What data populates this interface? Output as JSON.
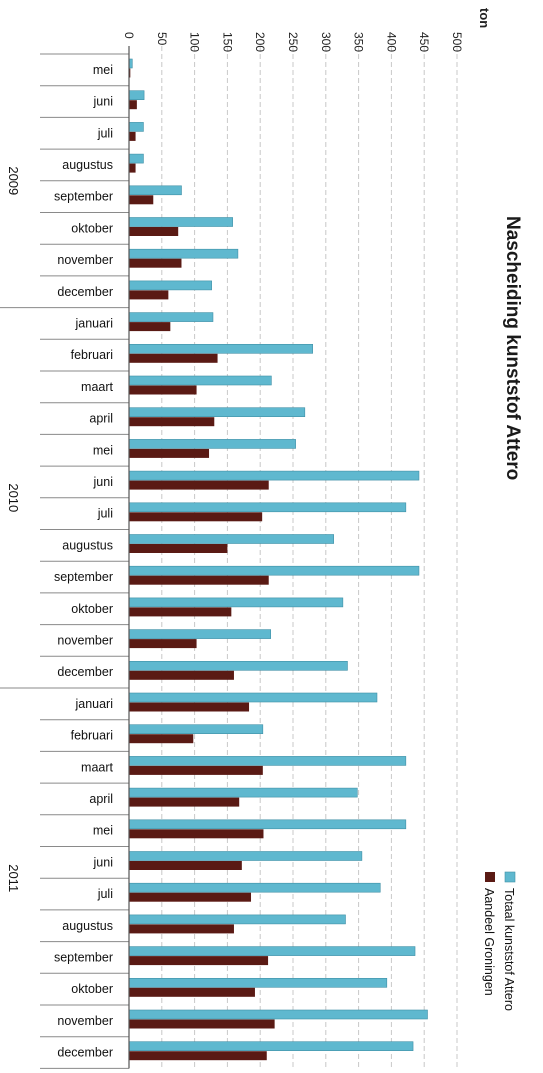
{
  "chart_data": {
    "type": "bar",
    "title": "Nascheiding kunststof Attero",
    "unit_label": "ton",
    "xlim": [
      0,
      500
    ],
    "ticks": [
      0,
      50,
      100,
      150,
      200,
      250,
      300,
      350,
      400,
      450,
      500
    ],
    "grid": true,
    "legend_position": "bottom-right",
    "categories": [
      "mei",
      "juni",
      "juli",
      "augustus",
      "september",
      "oktober",
      "november",
      "december",
      "januari",
      "februari",
      "maart",
      "april",
      "mei",
      "juni",
      "juli",
      "augustus",
      "september",
      "oktober",
      "november",
      "december",
      "januari",
      "februari",
      "maart",
      "april",
      "mei",
      "juni",
      "juli",
      "augustus",
      "september",
      "oktober",
      "november",
      "december"
    ],
    "year_groups": [
      {
        "label": "2009",
        "start": 0,
        "end": 7
      },
      {
        "label": "2010",
        "start": 8,
        "end": 19
      },
      {
        "label": "2011",
        "start": 20,
        "end": 31
      }
    ],
    "series": [
      {
        "name": "Totaal kunststof Attero",
        "color": "#5fb8cf",
        "values": [
          5,
          23,
          22,
          22,
          80,
          158,
          166,
          126,
          128,
          280,
          217,
          268,
          254,
          442,
          422,
          312,
          442,
          326,
          216,
          333,
          378,
          204,
          422,
          348,
          422,
          355,
          383,
          330,
          436,
          393,
          455,
          433
        ]
      },
      {
        "name": "Aandeel Groningen",
        "color": "#5a1a14",
        "values": [
          2,
          12,
          10,
          10,
          37,
          75,
          80,
          60,
          63,
          135,
          103,
          130,
          122,
          213,
          203,
          150,
          213,
          156,
          103,
          160,
          183,
          98,
          204,
          168,
          205,
          172,
          186,
          160,
          212,
          192,
          222,
          210
        ]
      }
    ]
  }
}
